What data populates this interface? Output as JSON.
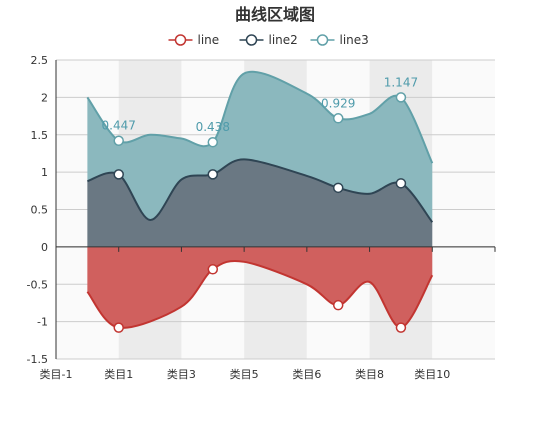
{
  "chart_data": {
    "type": "area",
    "title": "曲线区域图",
    "categories": [
      "类目-1",
      "类目1",
      "类目3",
      "类目5",
      "类目6",
      "类目8",
      "类目10"
    ],
    "ylim": [
      -1.5,
      2.5
    ],
    "yticks": [
      "2.5",
      "2",
      "1.5",
      "1",
      "0.5",
      "0",
      "-0.5",
      "-1",
      "-1.5"
    ],
    "legend_position": "top-center",
    "grid": true,
    "series": [
      {
        "name": "line",
        "color": "#c23531",
        "fill": "#d0605e",
        "stack": "negative",
        "points": [
          [
            0.5,
            -0.6
          ],
          [
            1,
            -1.08
          ],
          [
            2,
            -0.8
          ],
          [
            2.5,
            -0.3
          ],
          [
            3,
            -0.2
          ],
          [
            4,
            -0.5
          ],
          [
            4.5,
            -0.78
          ],
          [
            5,
            -0.47
          ],
          [
            5.5,
            -1.08
          ],
          [
            6,
            -0.38
          ]
        ],
        "markers": [
          [
            1,
            -1.08
          ],
          [
            2.5,
            -0.3
          ],
          [
            4.5,
            -0.78
          ],
          [
            5.5,
            -1.08
          ]
        ]
      },
      {
        "name": "line2",
        "color": "#2f4554",
        "fill": "#6a7883",
        "stack": "base",
        "points": [
          [
            0.5,
            0.88
          ],
          [
            1,
            0.97
          ],
          [
            1.5,
            0.36
          ],
          [
            2,
            0.9
          ],
          [
            2.5,
            0.97
          ],
          [
            3,
            1.17
          ],
          [
            4,
            0.95
          ],
          [
            4.5,
            0.79
          ],
          [
            5,
            0.71
          ],
          [
            5.5,
            0.85
          ],
          [
            6,
            0.33
          ]
        ],
        "markers": [
          [
            1,
            0.97
          ],
          [
            2.5,
            0.97
          ],
          [
            4.5,
            0.79
          ],
          [
            5.5,
            0.85
          ]
        ]
      },
      {
        "name": "line3",
        "color": "#61a0a8",
        "fill": "#8bb8be",
        "stack": "top",
        "points": [
          [
            0.5,
            2.0
          ],
          [
            1,
            1.42
          ],
          [
            1.5,
            1.5
          ],
          [
            2,
            1.45
          ],
          [
            2.5,
            1.4
          ],
          [
            3,
            2.32
          ],
          [
            4,
            2.05
          ],
          [
            4.5,
            1.72
          ],
          [
            5,
            1.78
          ],
          [
            5.5,
            2.0
          ],
          [
            6,
            1.12
          ]
        ],
        "markers": [
          [
            1,
            1.42
          ],
          [
            2.5,
            1.4
          ],
          [
            4.5,
            1.72
          ],
          [
            5.5,
            2.0
          ]
        ],
        "labels": [
          {
            "x": 1,
            "y": 1.42,
            "text": "0.447"
          },
          {
            "x": 2.5,
            "y": 1.4,
            "text": "0.438"
          },
          {
            "x": 4.5,
            "y": 1.72,
            "text": "0.929"
          },
          {
            "x": 5.5,
            "y": 2.0,
            "text": "1.147"
          }
        ]
      }
    ]
  }
}
